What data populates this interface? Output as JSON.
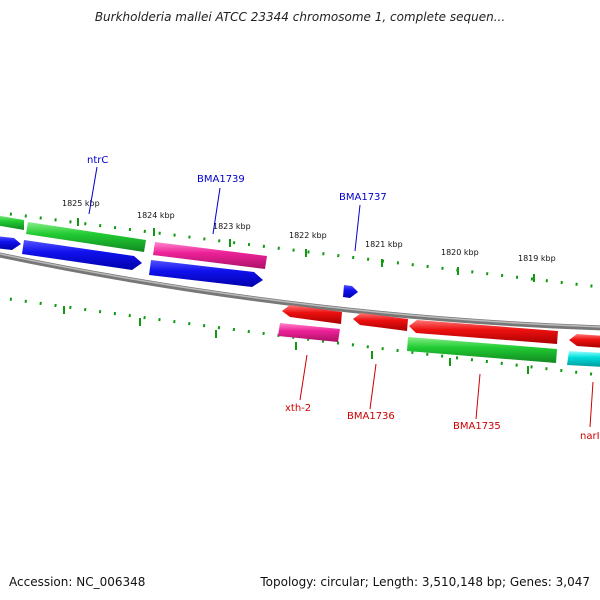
{
  "title": "Burkholderia mallei ATCC 23344 chromosome 1, complete sequen...",
  "footer": {
    "accession": "Accession: NC_006348",
    "stats": "Topology: circular; Length: 3,510,148 bp; Genes: 3,047"
  },
  "ticks": [
    "1825 kbp",
    "1824 kbp",
    "1823 kbp",
    "1822 kbp",
    "1821 kbp",
    "1820 kbp",
    "1819 kbp"
  ],
  "labels_top": [
    "ntrC",
    "BMA1739",
    "BMA1737"
  ],
  "labels_bottom": [
    "xth-2",
    "BMA1736",
    "BMA1735",
    "narI"
  ],
  "colors": {
    "green": "#22cc33",
    "blue": "#1111ee",
    "magenta": "#ee2299",
    "red": "#ee1111",
    "cyan": "#00dddd",
    "backbone": "#888888",
    "tick_mark": "#119911",
    "label_blue": "#0000cc",
    "label_red": "#cc0000"
  }
}
